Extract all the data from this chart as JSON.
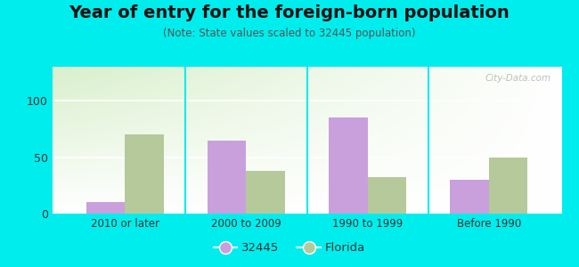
{
  "title": "Year of entry for the foreign-born population",
  "subtitle": "(Note: State values scaled to 32445 population)",
  "categories": [
    "2010 or later",
    "2000 to 2009",
    "1990 to 1999",
    "Before 1990"
  ],
  "values_32445": [
    10,
    65,
    85,
    30
  ],
  "values_florida": [
    70,
    38,
    32,
    50
  ],
  "color_32445": "#c9a0dc",
  "color_florida": "#b5c99a",
  "legend_32445": "32445",
  "legend_florida": "Florida",
  "ylim": [
    0,
    130
  ],
  "yticks": [
    0,
    50,
    100
  ],
  "outer_background": "#00eded",
  "bar_width": 0.32,
  "watermark": "City-Data.com",
  "title_fontsize": 14,
  "subtitle_fontsize": 8.5
}
